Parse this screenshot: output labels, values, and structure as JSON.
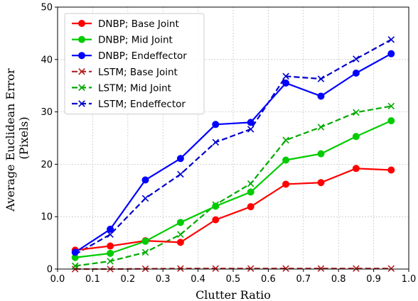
{
  "chart_data": {
    "type": "line",
    "xlabel": "Clutter Ratio",
    "ylabel_lines": [
      "Average Euclidean Error",
      "(Pixels)"
    ],
    "xlim": [
      0.0,
      1.0
    ],
    "ylim": [
      0,
      50
    ],
    "xticks": [
      "0.0",
      "0.1",
      "0.2",
      "0.3",
      "0.4",
      "0.5",
      "0.6",
      "0.7",
      "0.8",
      "0.9",
      "1.0"
    ],
    "yticks": [
      "0",
      "10",
      "20",
      "30",
      "40",
      "50"
    ],
    "grid": true,
    "legend_position": "top-left",
    "x": [
      0.05,
      0.15,
      0.25,
      0.35,
      0.45,
      0.55,
      0.65,
      0.75,
      0.85,
      0.95
    ],
    "series": [
      {
        "name": "DNBP; Base Joint",
        "color": "#ff0000",
        "style": "solid",
        "marker": "circle",
        "values": [
          3.6,
          4.4,
          5.4,
          5.1,
          9.4,
          11.9,
          16.2,
          16.5,
          19.2,
          18.9
        ]
      },
      {
        "name": "DNBP; Mid Joint",
        "color": "#00cc00",
        "style": "solid",
        "marker": "circle",
        "values": [
          2.2,
          3.0,
          5.3,
          8.9,
          12.0,
          14.7,
          20.8,
          22.0,
          25.3,
          28.3
        ]
      },
      {
        "name": "DNBP; Endeffector",
        "color": "#0000ff",
        "style": "solid",
        "marker": "circle",
        "values": [
          3.2,
          7.6,
          17.0,
          21.1,
          27.6,
          28.0,
          35.5,
          33.0,
          37.4,
          41.1
        ]
      },
      {
        "name": "LSTM; Base Joint",
        "color": "#b22222",
        "style": "dashed",
        "marker": "x",
        "values": [
          0.0,
          0.0,
          0.05,
          0.1,
          0.1,
          0.1,
          0.1,
          0.1,
          0.1,
          0.1
        ]
      },
      {
        "name": "LSTM; Mid Joint",
        "color": "#00aa00",
        "style": "dashed",
        "marker": "x",
        "values": [
          0.6,
          1.5,
          3.2,
          6.6,
          12.3,
          16.3,
          24.6,
          27.1,
          29.9,
          31.1
        ]
      },
      {
        "name": "LSTM; Endeffector",
        "color": "#0000cc",
        "style": "dashed",
        "marker": "x",
        "values": [
          2.8,
          6.6,
          13.5,
          18.1,
          24.2,
          26.7,
          36.8,
          36.3,
          40.1,
          43.8
        ]
      }
    ]
  }
}
